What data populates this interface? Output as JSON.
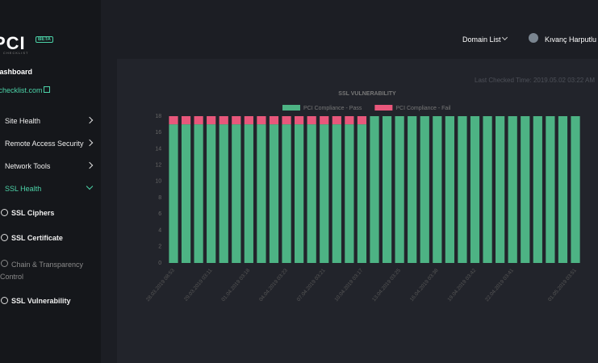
{
  "sidebar": {
    "logo": "PCI",
    "badge": "BETA",
    "logo_sub": "CHECKLIST",
    "dashboard": "Dashboard",
    "domain": "pcichecklist.com",
    "menu": [
      "Site Health",
      "Remote Access Security",
      "Network Tools",
      "SSL Health"
    ],
    "submenu": [
      "SSL Ciphers",
      "SSL Certificate",
      "Chain & Transparency Control",
      "SSL Vulnerability"
    ]
  },
  "header": {
    "domain_list": "Domain List",
    "user": "Kıvanç Harputlu"
  },
  "last_checked": "Last Checked Time: 2019.05.02 03:22 AM",
  "chart_data": {
    "type": "stacked_bar",
    "title": "SSL VULNERABILITY",
    "categories": [
      "28.03.2019 08:53",
      null,
      null,
      "29.03.2019 03:11",
      null,
      null,
      "01.04.2019 03:18",
      null,
      null,
      "04.04.2019 03:23",
      null,
      null,
      "07.04.2019 03:21",
      null,
      null,
      "10.04.2019 03:17",
      null,
      null,
      "13.04.2019 03:25",
      null,
      null,
      "16.04.2019 03:38",
      null,
      null,
      "19.04.2019 03:42",
      null,
      null,
      "22.04.2019 03:41",
      null,
      null,
      null,
      null,
      "01.05.2019 03:51"
    ],
    "series": [
      {
        "name": "PCI Compliance - Pass",
        "color": "#4db384",
        "values": [
          17,
          17,
          17,
          17,
          17,
          17,
          17,
          17,
          17,
          17,
          17,
          17,
          17,
          17,
          17,
          17,
          18,
          18,
          18,
          18,
          18,
          18,
          18,
          18,
          18,
          18,
          18,
          18,
          18,
          18,
          18,
          18,
          18
        ]
      },
      {
        "name": "PCI Compliance - Fail",
        "color": "#e8577b",
        "values": [
          1,
          1,
          1,
          1,
          1,
          1,
          1,
          1,
          1,
          1,
          1,
          1,
          1,
          1,
          1,
          1,
          0,
          0,
          0,
          0,
          0,
          0,
          0,
          0,
          0,
          0,
          0,
          0,
          0,
          0,
          0,
          0,
          0
        ]
      }
    ],
    "ylim": [
      0,
      18
    ],
    "yticks": [
      0,
      2,
      4,
      6,
      8,
      10,
      12,
      14,
      16,
      18
    ],
    "grid": false
  }
}
